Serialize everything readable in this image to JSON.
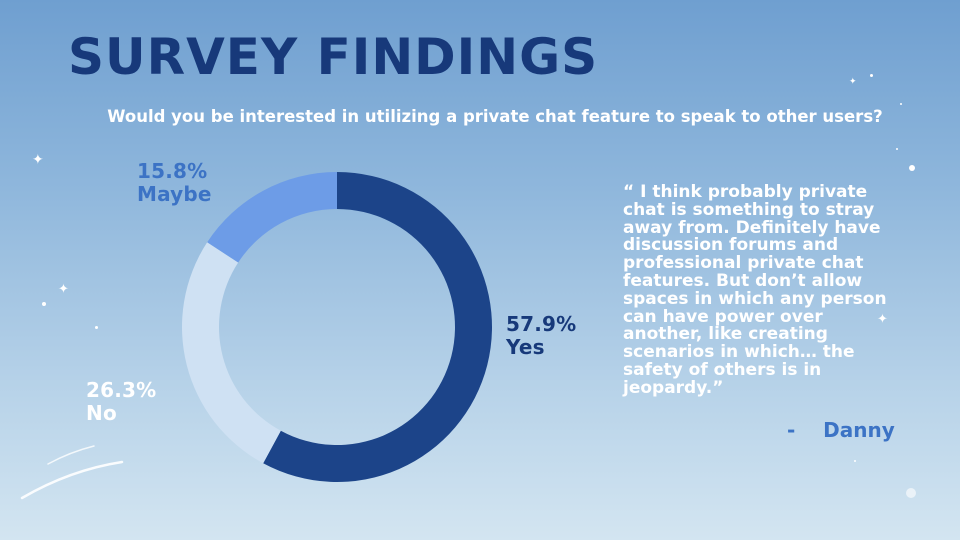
{
  "title": "SURVEY FINDINGS",
  "question": "Would you be interested in utilizing a private chat feature to speak to other users?",
  "chart_data": {
    "type": "pie",
    "title": "",
    "slices": [
      {
        "label": "Yes",
        "value": 57.9,
        "display": "57.9%",
        "color": "#1c4489"
      },
      {
        "label": "No",
        "value": 26.3,
        "display": "26.3%",
        "color": "#cfe1f3"
      },
      {
        "label": "Maybe",
        "value": 15.8,
        "display": "15.8%",
        "color": "#6d9ce7"
      }
    ]
  },
  "quote": {
    "text": "“ I think probably private chat is something to stray away from. Definitely have discussion forums and professional private chat features. But don’t allow spaces in which any person can have power over another, like creating scenarios in which… the safety of others is in jeopardy.”",
    "author": "-    Danny"
  },
  "colors": {
    "title": "#17397a",
    "accent": "#3c73c5"
  }
}
